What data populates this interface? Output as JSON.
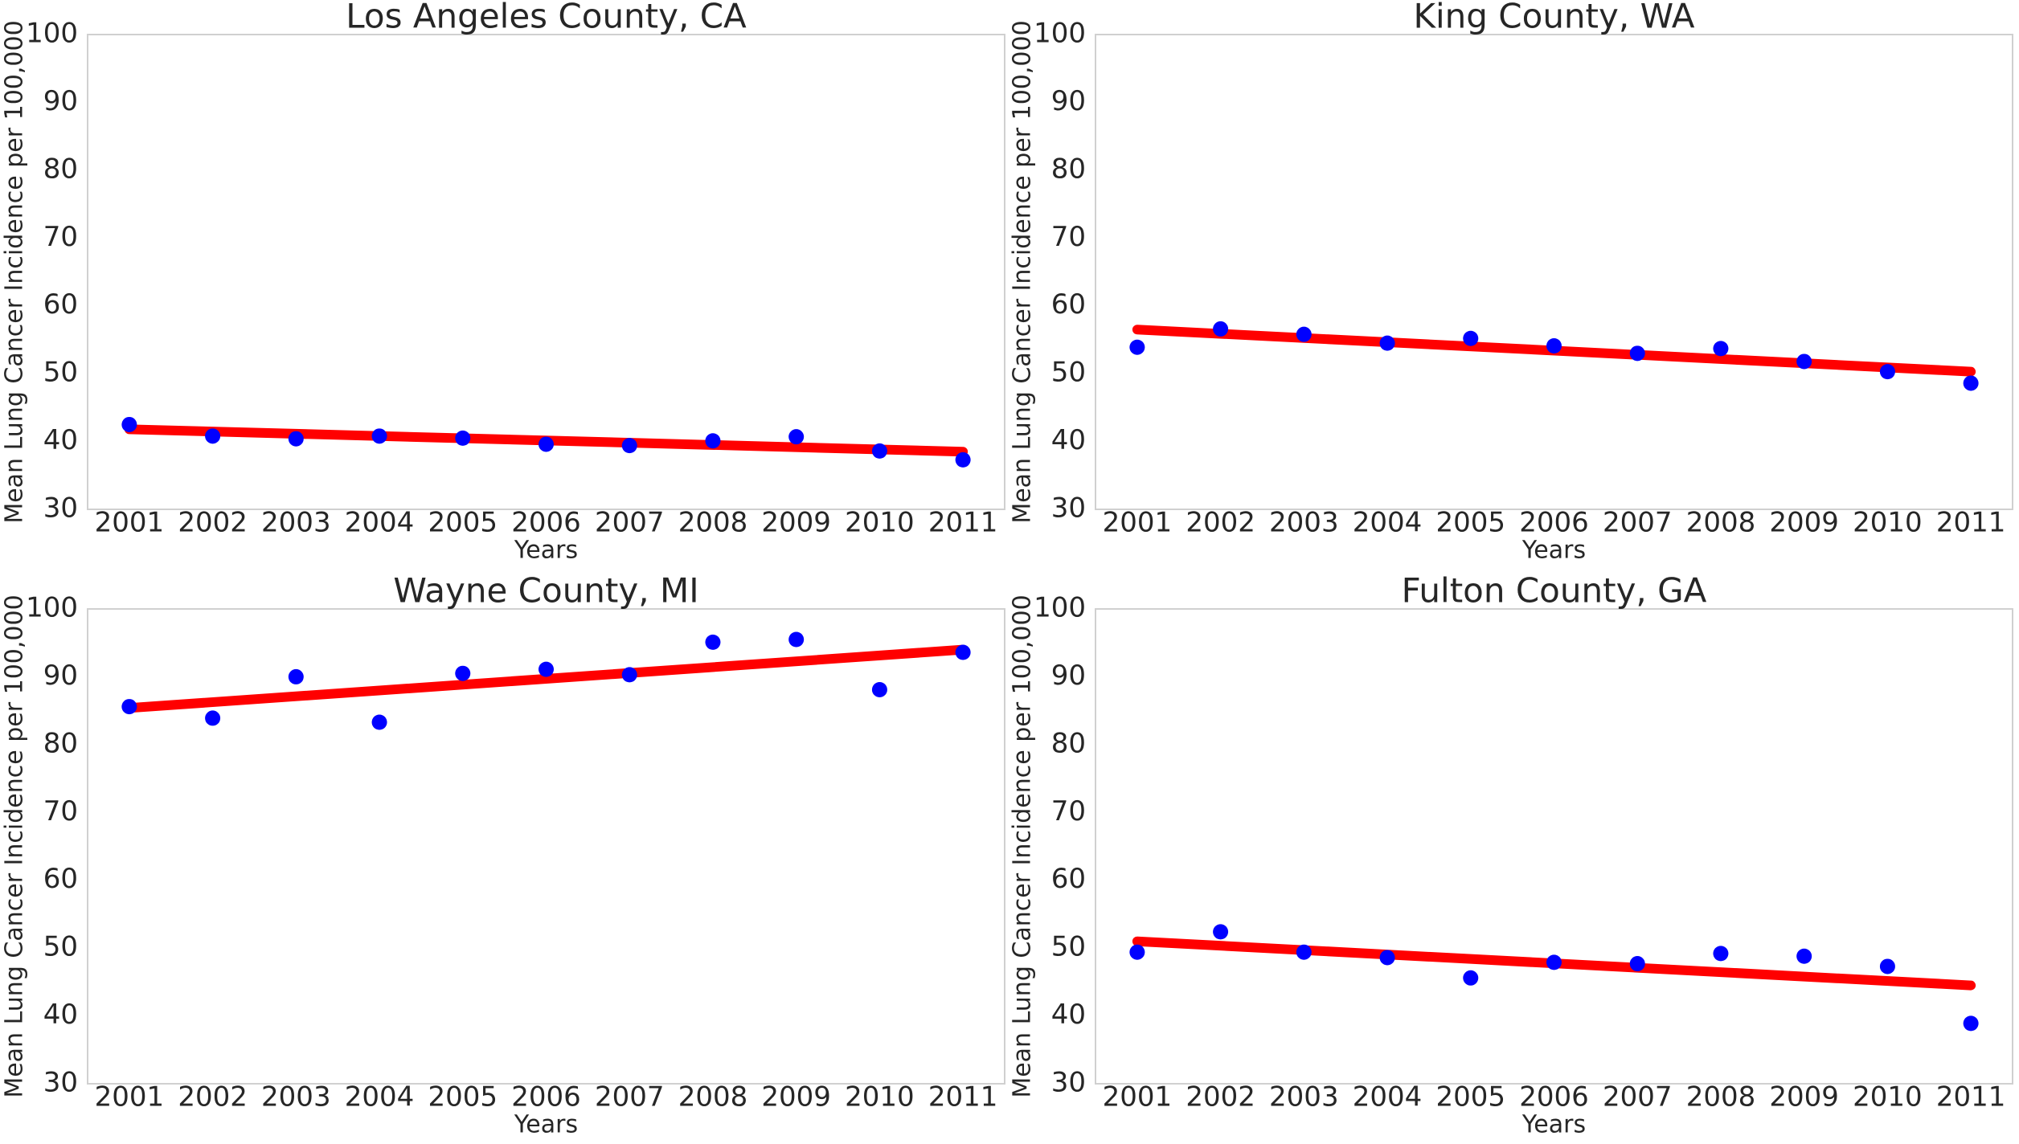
{
  "chart_data": [
    {
      "type": "scatter",
      "title": "Los Angeles County, CA",
      "xlabel": "Years",
      "ylabel": "Mean Lung Cancer Incidence per 100,000",
      "x": [
        2001,
        2002,
        2003,
        2004,
        2005,
        2006,
        2007,
        2008,
        2009,
        2010,
        2011
      ],
      "values": [
        42.5,
        40.8,
        40.4,
        40.8,
        40.5,
        39.6,
        39.4,
        40.1,
        40.7,
        38.6,
        37.3
      ],
      "color": "#0000ff",
      "trend": {
        "x": [
          2001,
          2011
        ],
        "values": [
          41.8,
          38.5
        ],
        "color": "#ff0000"
      },
      "xlim": [
        2000.5,
        2011.5
      ],
      "xticks": [
        2001,
        2002,
        2003,
        2004,
        2005,
        2006,
        2007,
        2008,
        2009,
        2010,
        2011
      ],
      "ylim": [
        30,
        100
      ],
      "yticks": [
        30,
        40,
        50,
        60,
        70,
        80,
        90,
        100
      ],
      "grid": false
    },
    {
      "type": "scatter",
      "title": "King County, WA",
      "xlabel": "Years",
      "ylabel": "Mean Lung Cancer Incidence per 100,000",
      "x": [
        2001,
        2002,
        2003,
        2004,
        2005,
        2006,
        2007,
        2008,
        2009,
        2010,
        2011
      ],
      "values": [
        53.9,
        56.6,
        55.8,
        54.5,
        55.2,
        54.1,
        53.0,
        53.7,
        51.8,
        50.3,
        48.6
      ],
      "color": "#0000ff",
      "trend": {
        "x": [
          2001,
          2011
        ],
        "values": [
          56.5,
          50.3
        ],
        "color": "#ff0000"
      },
      "xlim": [
        2000.5,
        2011.5
      ],
      "xticks": [
        2001,
        2002,
        2003,
        2004,
        2005,
        2006,
        2007,
        2008,
        2009,
        2010,
        2011
      ],
      "ylim": [
        30,
        100
      ],
      "yticks": [
        30,
        40,
        50,
        60,
        70,
        80,
        90,
        100
      ],
      "grid": false
    },
    {
      "type": "scatter",
      "title": "Wayne County, MI",
      "xlabel": "Years",
      "ylabel": "Mean Lung Cancer Incidence per 100,000",
      "x": [
        2001,
        2002,
        2003,
        2004,
        2005,
        2006,
        2007,
        2008,
        2009,
        2010,
        2011
      ],
      "values": [
        85.6,
        83.9,
        90.0,
        83.3,
        90.5,
        91.1,
        90.3,
        95.1,
        95.5,
        88.1,
        93.6
      ],
      "color": "#0000ff",
      "trend": {
        "x": [
          2001,
          2011
        ],
        "values": [
          85.4,
          94.0
        ],
        "color": "#ff0000"
      },
      "xlim": [
        2000.5,
        2011.5
      ],
      "xticks": [
        2001,
        2002,
        2003,
        2004,
        2005,
        2006,
        2007,
        2008,
        2009,
        2010,
        2011
      ],
      "ylim": [
        30,
        100
      ],
      "yticks": [
        30,
        40,
        50,
        60,
        70,
        80,
        90,
        100
      ],
      "grid": false
    },
    {
      "type": "scatter",
      "title": "Fulton County, GA",
      "xlabel": "Years",
      "ylabel": "Mean Lung Cancer Incidence per 100,000",
      "x": [
        2001,
        2002,
        2003,
        2004,
        2005,
        2006,
        2007,
        2008,
        2009,
        2010,
        2011
      ],
      "values": [
        49.4,
        52.4,
        49.4,
        48.6,
        45.6,
        47.9,
        47.7,
        49.2,
        48.8,
        47.3,
        38.9
      ],
      "color": "#0000ff",
      "trend": {
        "x": [
          2001,
          2011
        ],
        "values": [
          51.0,
          44.5
        ],
        "color": "#ff0000"
      },
      "xlim": [
        2000.5,
        2011.5
      ],
      "xticks": [
        2001,
        2002,
        2003,
        2004,
        2005,
        2006,
        2007,
        2008,
        2009,
        2010,
        2011
      ],
      "ylim": [
        30,
        100
      ],
      "yticks": [
        30,
        40,
        50,
        60,
        70,
        80,
        90,
        100
      ],
      "grid": false
    }
  ]
}
